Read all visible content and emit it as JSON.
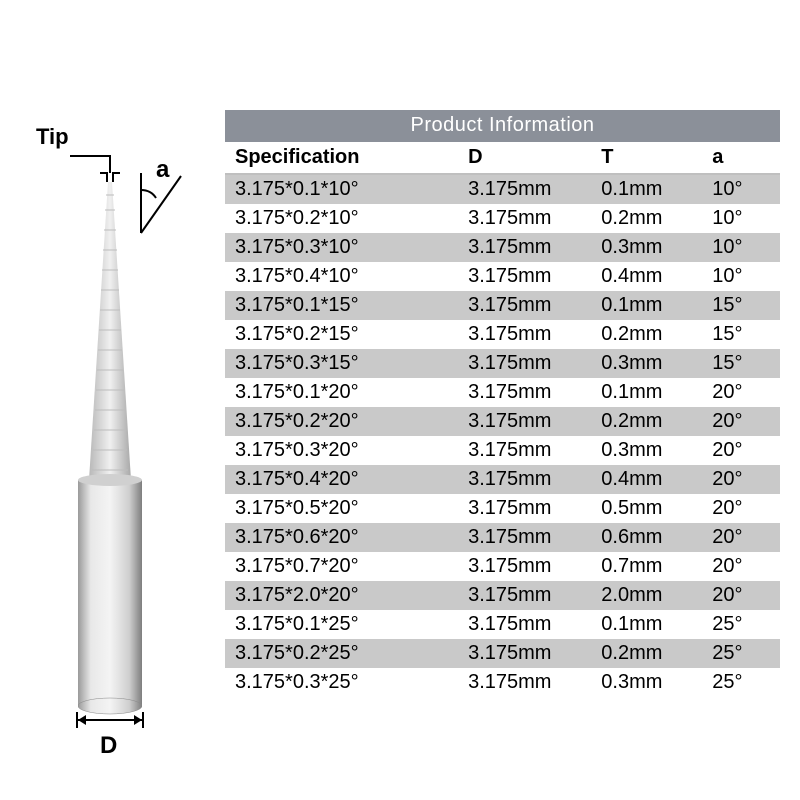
{
  "diagram": {
    "tip_label": "Tip",
    "angle_label": "a",
    "diameter_label": "D",
    "shank_color_light": "#e2e2e2",
    "shank_color_mid": "#bdbdbd",
    "shank_color_dark": "#8a8a8a",
    "flute_line_color": "#d0d0d0"
  },
  "table": {
    "title": "Product Information",
    "header_bg": "#8b9099",
    "header_fg": "#ffffff",
    "row_odd_bg": "#c9c9c9",
    "row_even_bg": "#ffffff",
    "font_size": 20,
    "columns": [
      {
        "key": "spec",
        "label": "Specification"
      },
      {
        "key": "d",
        "label": "D"
      },
      {
        "key": "t",
        "label": "T"
      },
      {
        "key": "a",
        "label": "a"
      }
    ],
    "rows": [
      {
        "spec": "3.175*0.1*10°",
        "d": "3.175mm",
        "t": "0.1mm",
        "a": "10°"
      },
      {
        "spec": "3.175*0.2*10°",
        "d": "3.175mm",
        "t": "0.2mm",
        "a": "10°"
      },
      {
        "spec": "3.175*0.3*10°",
        "d": "3.175mm",
        "t": "0.3mm",
        "a": "10°"
      },
      {
        "spec": "3.175*0.4*10°",
        "d": "3.175mm",
        "t": "0.4mm",
        "a": "10°"
      },
      {
        "spec": "3.175*0.1*15°",
        "d": "3.175mm",
        "t": "0.1mm",
        "a": "15°"
      },
      {
        "spec": "3.175*0.2*15°",
        "d": "3.175mm",
        "t": "0.2mm",
        "a": "15°"
      },
      {
        "spec": "3.175*0.3*15°",
        "d": "3.175mm",
        "t": "0.3mm",
        "a": "15°"
      },
      {
        "spec": "3.175*0.1*20°",
        "d": "3.175mm",
        "t": "0.1mm",
        "a": "20°"
      },
      {
        "spec": "3.175*0.2*20°",
        "d": "3.175mm",
        "t": "0.2mm",
        "a": "20°"
      },
      {
        "spec": "3.175*0.3*20°",
        "d": "3.175mm",
        "t": "0.3mm",
        "a": "20°"
      },
      {
        "spec": "3.175*0.4*20°",
        "d": "3.175mm",
        "t": "0.4mm",
        "a": "20°"
      },
      {
        "spec": "3.175*0.5*20°",
        "d": "3.175mm",
        "t": "0.5mm",
        "a": "20°"
      },
      {
        "spec": "3.175*0.6*20°",
        "d": "3.175mm",
        "t": "0.6mm",
        "a": "20°"
      },
      {
        "spec": "3.175*0.7*20°",
        "d": "3.175mm",
        "t": "0.7mm",
        "a": "20°"
      },
      {
        "spec": "3.175*2.0*20°",
        "d": "3.175mm",
        "t": "2.0mm",
        "a": "20°"
      },
      {
        "spec": "3.175*0.1*25°",
        "d": "3.175mm",
        "t": "0.1mm",
        "a": "25°"
      },
      {
        "spec": "3.175*0.2*25°",
        "d": "3.175mm",
        "t": "0.2mm",
        "a": "25°"
      },
      {
        "spec": "3.175*0.3*25°",
        "d": "3.175mm",
        "t": "0.3mm",
        "a": "25°"
      }
    ]
  }
}
